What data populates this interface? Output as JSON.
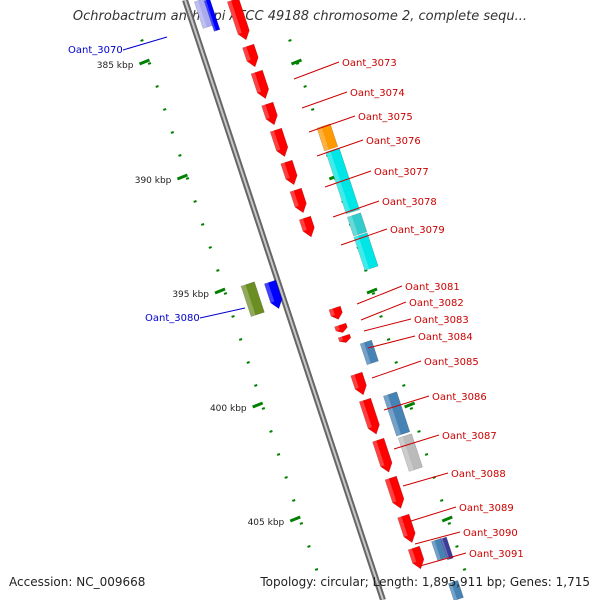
{
  "title": "Ochrobactrum anthropi ATCC 49188 chromosome 2, complete sequ...",
  "ticks": [
    "385 kbp",
    "390 kbp",
    "395 kbp",
    "400 kbp",
    "405 kbp"
  ],
  "footer": {
    "accession": "Accession: NC_009668",
    "summary": "Topology: circular; Length: 1,895,911 bp; Genes: 1,715"
  },
  "colors": {
    "forward_gene": "#ff0000",
    "reverse_gene_blue": "#0000ff",
    "reverse_gene_olive": "#6b8e23",
    "label_red": "#cc0000",
    "label_blue": "#0000cc",
    "backbone": "#888888",
    "tick_green": "#008000",
    "cyan": "#00e5e5",
    "orange": "#ff9900",
    "steelblue": "#4682b4",
    "grey": "#bbbbbb",
    "navy": "#3b3b9b"
  },
  "gene_labels": [
    {
      "name": "Oant_3070",
      "strand": "reverse"
    },
    {
      "name": "Oant_3073",
      "strand": "forward"
    },
    {
      "name": "Oant_3074",
      "strand": "forward"
    },
    {
      "name": "Oant_3075",
      "strand": "forward"
    },
    {
      "name": "Oant_3076",
      "strand": "forward"
    },
    {
      "name": "Oant_3077",
      "strand": "forward"
    },
    {
      "name": "Oant_3078",
      "strand": "forward"
    },
    {
      "name": "Oant_3079",
      "strand": "forward"
    },
    {
      "name": "Oant_3080",
      "strand": "reverse"
    },
    {
      "name": "Oant_3081",
      "strand": "forward"
    },
    {
      "name": "Oant_3082",
      "strand": "forward"
    },
    {
      "name": "Oant_3083",
      "strand": "forward"
    },
    {
      "name": "Oant_3084",
      "strand": "forward"
    },
    {
      "name": "Oant_3085",
      "strand": "forward"
    },
    {
      "name": "Oant_3086",
      "strand": "forward"
    },
    {
      "name": "Oant_3087",
      "strand": "forward"
    },
    {
      "name": "Oant_3088",
      "strand": "forward"
    },
    {
      "name": "Oant_3089",
      "strand": "forward"
    },
    {
      "name": "Oant_3090",
      "strand": "forward"
    },
    {
      "name": "Oant_3091",
      "strand": "forward"
    }
  ]
}
